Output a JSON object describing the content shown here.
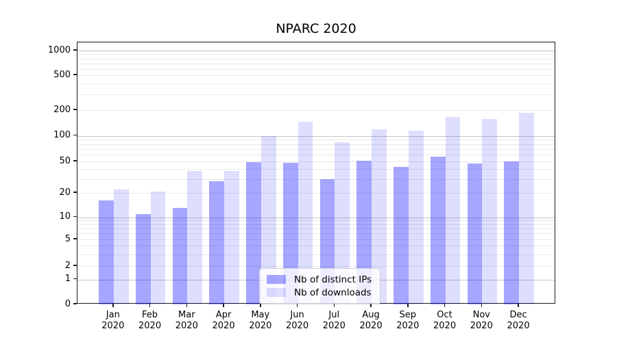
{
  "chart_data": {
    "type": "bar",
    "title": "NPARC 2020",
    "categories": [
      "Jan 2020",
      "Feb 2020",
      "Mar 2020",
      "Apr 2020",
      "May 2020",
      "Jun 2020",
      "Jul 2020",
      "Aug 2020",
      "Sep 2020",
      "Oct 2020",
      "Nov 2020",
      "Dec 2020"
    ],
    "series": [
      {
        "name": "Nb of distinct IPs",
        "base_color": "#0000ff",
        "alpha": 0.35,
        "rendered_color": "#a6a6ff",
        "values": [
          16,
          11,
          13,
          28,
          49,
          48,
          30,
          51,
          43,
          57,
          47,
          50
        ]
      },
      {
        "name": "Nb of downloads",
        "base_color": "#0000ff",
        "alpha": 0.13,
        "rendered_color": "#dedeff",
        "values": [
          22,
          21,
          38,
          38,
          100,
          145,
          84,
          120,
          115,
          165,
          157,
          185
        ]
      }
    ],
    "xlabel": "",
    "ylabel": "",
    "yscale": "symlog",
    "yticks": [
      0,
      1,
      2,
      5,
      10,
      20,
      50,
      100,
      200,
      500,
      1000
    ],
    "ylim": [
      0,
      1250
    ],
    "grid": {
      "enabled": true,
      "major_line_values": [
        1,
        10,
        100,
        1000
      ],
      "major_color": "#c6c6c6",
      "minor_color": "#e9e9e9"
    },
    "legend": {
      "position": "lower-center-inside",
      "entries": [
        "Nb of distinct IPs",
        "Nb of downloads"
      ]
    }
  },
  "colors": {
    "background": "#ffffff",
    "spine": "#1a1a1a",
    "tick_label": "#000000",
    "title": "#000000"
  }
}
